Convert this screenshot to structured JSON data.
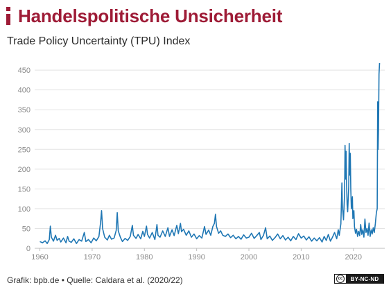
{
  "header": {
    "title": "Handelspolitische Unsicherheit",
    "subtitle": "Trade Policy Uncertainty (TPU) Index"
  },
  "footer": {
    "source": "Grafik: bpb.de • Quelle: Caldara et al. (2020/22)",
    "license_icon": "cc-icon",
    "license_symbol": "cc",
    "license_terms": "BY-NC-ND"
  },
  "colors": {
    "accent": "#9e1b36",
    "line": "#1f77b4",
    "grid": "#e3e3e3",
    "tick_text": "#8a8a8a"
  },
  "chart_data": {
    "type": "line",
    "title": "",
    "xlabel": "",
    "ylabel": "",
    "xlim": [
      1959,
      2026
    ],
    "ylim": [
      0,
      480
    ],
    "x_ticks": [
      1960,
      1970,
      1980,
      1990,
      2000,
      2010,
      2020
    ],
    "y_ticks": [
      0,
      50,
      100,
      150,
      200,
      250,
      300,
      350,
      400,
      450
    ],
    "grid": true,
    "legend": "none",
    "series": [
      {
        "name": "",
        "points": [
          [
            1960.0,
            17
          ],
          [
            1960.5,
            14
          ],
          [
            1961.0,
            19
          ],
          [
            1961.4,
            12
          ],
          [
            1961.8,
            22
          ],
          [
            1962.0,
            56
          ],
          [
            1962.2,
            28
          ],
          [
            1962.6,
            18
          ],
          [
            1963.0,
            33
          ],
          [
            1963.3,
            20
          ],
          [
            1963.7,
            25
          ],
          [
            1964.0,
            16
          ],
          [
            1964.5,
            26
          ],
          [
            1965.0,
            14
          ],
          [
            1965.3,
            30
          ],
          [
            1965.6,
            18
          ],
          [
            1966.0,
            15
          ],
          [
            1966.5,
            24
          ],
          [
            1967.0,
            12
          ],
          [
            1967.5,
            22
          ],
          [
            1968.0,
            18
          ],
          [
            1968.5,
            40
          ],
          [
            1968.8,
            17
          ],
          [
            1969.3,
            22
          ],
          [
            1969.8,
            14
          ],
          [
            1970.3,
            26
          ],
          [
            1970.8,
            19
          ],
          [
            1971.3,
            30
          ],
          [
            1971.6,
            64
          ],
          [
            1971.8,
            95
          ],
          [
            1972.0,
            50
          ],
          [
            1972.4,
            28
          ],
          [
            1972.9,
            21
          ],
          [
            1973.3,
            33
          ],
          [
            1973.7,
            23
          ],
          [
            1974.2,
            26
          ],
          [
            1974.6,
            45
          ],
          [
            1974.8,
            90
          ],
          [
            1975.0,
            44
          ],
          [
            1975.4,
            28
          ],
          [
            1975.8,
            17
          ],
          [
            1976.3,
            25
          ],
          [
            1976.8,
            20
          ],
          [
            1977.3,
            30
          ],
          [
            1977.7,
            58
          ],
          [
            1977.9,
            33
          ],
          [
            1978.4,
            25
          ],
          [
            1978.8,
            35
          ],
          [
            1979.3,
            24
          ],
          [
            1979.7,
            43
          ],
          [
            1980.0,
            30
          ],
          [
            1980.4,
            56
          ],
          [
            1980.6,
            35
          ],
          [
            1981.0,
            26
          ],
          [
            1981.5,
            40
          ],
          [
            1982.0,
            22
          ],
          [
            1982.4,
            60
          ],
          [
            1982.6,
            33
          ],
          [
            1983.0,
            28
          ],
          [
            1983.5,
            44
          ],
          [
            1984.0,
            30
          ],
          [
            1984.5,
            52
          ],
          [
            1984.8,
            30
          ],
          [
            1985.3,
            47
          ],
          [
            1985.7,
            32
          ],
          [
            1986.2,
            58
          ],
          [
            1986.5,
            37
          ],
          [
            1986.9,
            63
          ],
          [
            1987.1,
            42
          ],
          [
            1987.5,
            48
          ],
          [
            1988.0,
            33
          ],
          [
            1988.5,
            44
          ],
          [
            1989.0,
            28
          ],
          [
            1989.5,
            36
          ],
          [
            1990.0,
            24
          ],
          [
            1990.5,
            32
          ],
          [
            1991.0,
            26
          ],
          [
            1991.5,
            55
          ],
          [
            1991.8,
            35
          ],
          [
            1992.3,
            46
          ],
          [
            1992.7,
            33
          ],
          [
            1993.1,
            55
          ],
          [
            1993.4,
            63
          ],
          [
            1993.6,
            86
          ],
          [
            1993.8,
            55
          ],
          [
            1994.2,
            38
          ],
          [
            1994.6,
            44
          ],
          [
            1995.0,
            33
          ],
          [
            1995.5,
            30
          ],
          [
            1996.0,
            36
          ],
          [
            1996.5,
            27
          ],
          [
            1997.0,
            33
          ],
          [
            1997.5,
            24
          ],
          [
            1998.0,
            30
          ],
          [
            1998.5,
            23
          ],
          [
            1999.0,
            34
          ],
          [
            1999.5,
            26
          ],
          [
            2000.0,
            28
          ],
          [
            2000.5,
            38
          ],
          [
            2001.0,
            25
          ],
          [
            2001.5,
            32
          ],
          [
            2002.0,
            40
          ],
          [
            2002.3,
            22
          ],
          [
            2002.8,
            33
          ],
          [
            2003.2,
            52
          ],
          [
            2003.5,
            24
          ],
          [
            2004.0,
            31
          ],
          [
            2004.5,
            20
          ],
          [
            2005.0,
            27
          ],
          [
            2005.5,
            36
          ],
          [
            2006.0,
            24
          ],
          [
            2006.5,
            32
          ],
          [
            2007.0,
            21
          ],
          [
            2007.5,
            28
          ],
          [
            2008.0,
            19
          ],
          [
            2008.5,
            30
          ],
          [
            2009.0,
            22
          ],
          [
            2009.5,
            37
          ],
          [
            2010.0,
            26
          ],
          [
            2010.5,
            31
          ],
          [
            2011.0,
            21
          ],
          [
            2011.5,
            29
          ],
          [
            2012.0,
            18
          ],
          [
            2012.5,
            26
          ],
          [
            2013.0,
            19
          ],
          [
            2013.5,
            27
          ],
          [
            2014.0,
            16
          ],
          [
            2014.4,
            30
          ],
          [
            2014.8,
            20
          ],
          [
            2015.2,
            35
          ],
          [
            2015.6,
            18
          ],
          [
            2016.0,
            28
          ],
          [
            2016.4,
            40
          ],
          [
            2016.8,
            24
          ],
          [
            2017.1,
            47
          ],
          [
            2017.3,
            33
          ],
          [
            2017.6,
            62
          ],
          [
            2017.8,
            165
          ],
          [
            2017.9,
            105
          ],
          [
            2018.1,
            72
          ],
          [
            2018.3,
            135
          ],
          [
            2018.4,
            260
          ],
          [
            2018.5,
            175
          ],
          [
            2018.6,
            245
          ],
          [
            2018.7,
            158
          ],
          [
            2018.8,
            110
          ],
          [
            2018.9,
            92
          ],
          [
            2019.1,
            155
          ],
          [
            2019.2,
            265
          ],
          [
            2019.3,
            185
          ],
          [
            2019.4,
            240
          ],
          [
            2019.5,
            150
          ],
          [
            2019.6,
            100
          ],
          [
            2019.8,
            130
          ],
          [
            2019.9,
            75
          ],
          [
            2020.1,
            95
          ],
          [
            2020.2,
            55
          ],
          [
            2020.4,
            38
          ],
          [
            2020.6,
            48
          ],
          [
            2020.8,
            30
          ],
          [
            2021.0,
            43
          ],
          [
            2021.2,
            32
          ],
          [
            2021.4,
            60
          ],
          [
            2021.6,
            35
          ],
          [
            2021.8,
            47
          ],
          [
            2022.0,
            28
          ],
          [
            2022.2,
            74
          ],
          [
            2022.4,
            40
          ],
          [
            2022.6,
            50
          ],
          [
            2022.8,
            33
          ],
          [
            2023.0,
            64
          ],
          [
            2023.2,
            30
          ],
          [
            2023.4,
            47
          ],
          [
            2023.6,
            36
          ],
          [
            2023.8,
            52
          ],
          [
            2024.0,
            40
          ],
          [
            2024.2,
            62
          ],
          [
            2024.4,
            90
          ],
          [
            2024.55,
            100
          ],
          [
            2024.65,
            370
          ],
          [
            2024.72,
            250
          ],
          [
            2024.8,
            300
          ],
          [
            2024.9,
            440
          ],
          [
            2025.0,
            468
          ]
        ]
      }
    ]
  }
}
